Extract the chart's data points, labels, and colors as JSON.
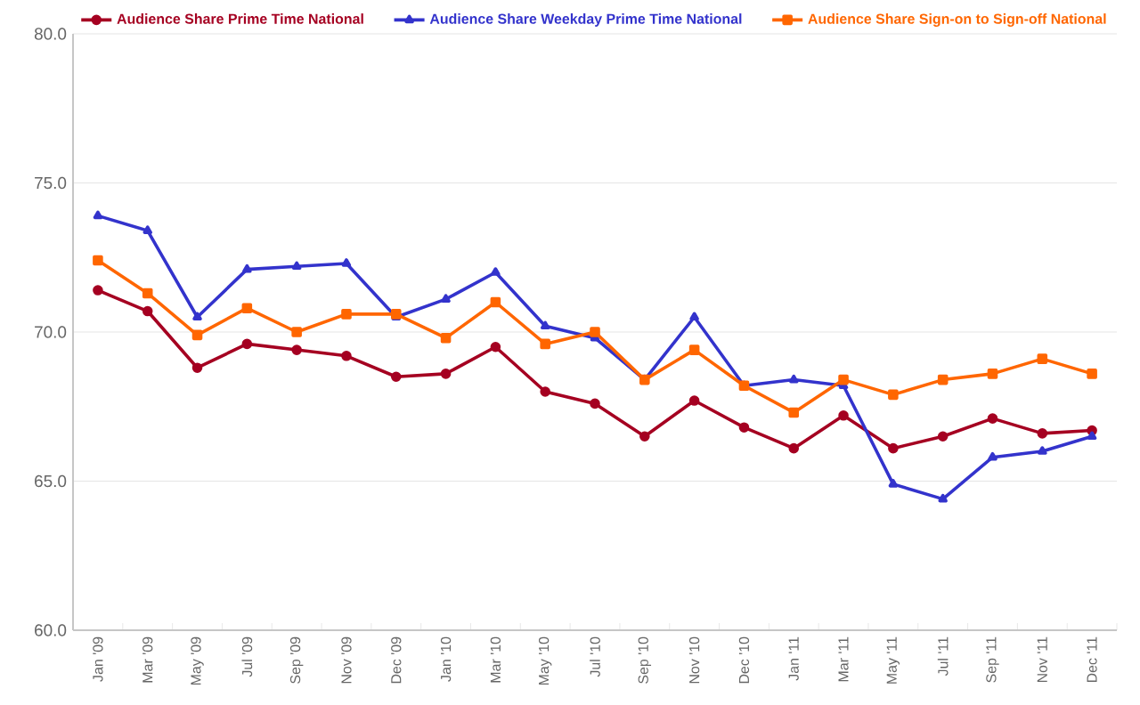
{
  "chart_data": {
    "type": "line",
    "categories": [
      "Jan '09",
      "Mar '09",
      "May '09",
      "Jul '09",
      "Sep '09",
      "Nov '09",
      "Dec '09",
      "Jan '10",
      "Mar '10",
      "May '10",
      "Jul '10",
      "Sep '10",
      "Nov '10",
      "Dec '10",
      "Jan '11",
      "Mar '11",
      "May '11",
      "Jul '11",
      "Sep '11",
      "Nov '11",
      "Dec '11"
    ],
    "series": [
      {
        "name": "Audience Share Prime Time National",
        "color": "#a50021",
        "marker": "circle",
        "values": [
          71.4,
          70.7,
          68.8,
          69.6,
          69.4,
          69.2,
          68.5,
          68.6,
          69.5,
          68.0,
          67.6,
          66.5,
          67.7,
          66.8,
          66.1,
          67.2,
          66.1,
          66.5,
          67.1,
          66.6,
          66.7
        ]
      },
      {
        "name": "Audience Share Weekday Prime Time National",
        "color": "#3333cc",
        "marker": "triangle",
        "values": [
          73.9,
          73.4,
          70.5,
          72.1,
          72.2,
          72.3,
          70.5,
          71.1,
          72.0,
          70.2,
          69.8,
          68.4,
          70.5,
          68.2,
          68.4,
          68.2,
          64.9,
          64.4,
          65.8,
          66.0,
          66.5
        ]
      },
      {
        "name": "Audience Share Sign-on to Sign-off National",
        "color": "#ff6600",
        "marker": "square",
        "values": [
          72.4,
          71.3,
          69.9,
          70.8,
          70.0,
          70.6,
          70.6,
          69.8,
          71.0,
          69.6,
          70.0,
          68.4,
          69.4,
          68.2,
          67.3,
          68.4,
          67.9,
          68.4,
          68.6,
          69.1,
          68.6
        ]
      }
    ],
    "ylim": [
      60,
      80
    ],
    "yticks": [
      {
        "value": 60,
        "label": "60.0"
      },
      {
        "value": 65,
        "label": "65.0"
      },
      {
        "value": 70,
        "label": "70.0"
      },
      {
        "value": 75,
        "label": "75.0"
      },
      {
        "value": 80,
        "label": "80.0"
      }
    ],
    "grid": "y",
    "legend": "top",
    "line_style": "solid"
  }
}
